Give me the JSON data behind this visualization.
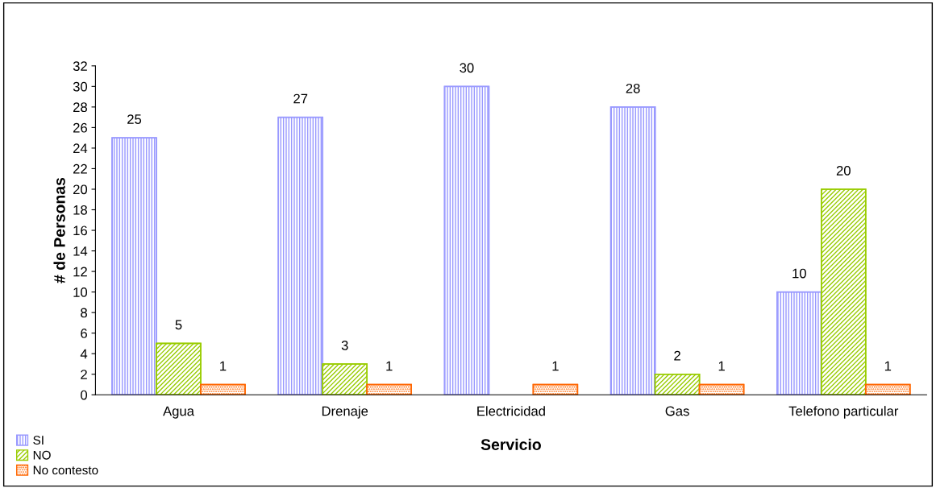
{
  "chart_data": {
    "type": "bar",
    "xlabel": "Servicio",
    "ylabel": "# de Personas",
    "categories": [
      "Agua",
      "Drenaje",
      "Electricidad",
      "Gas",
      "Telefono particular"
    ],
    "series": [
      {
        "name": "SI",
        "color": "#9999ff",
        "values": [
          25,
          27,
          30,
          28,
          10
        ]
      },
      {
        "name": "NO",
        "color": "#99cc00",
        "values": [
          5,
          3,
          null,
          2,
          20
        ]
      },
      {
        "name": "No contesto",
        "color": "#ff6600",
        "values": [
          1,
          1,
          1,
          1,
          1
        ]
      }
    ],
    "ylim": [
      0,
      32
    ],
    "yticks": [
      0,
      2,
      4,
      6,
      8,
      10,
      12,
      14,
      16,
      18,
      20,
      22,
      24,
      26,
      28,
      30,
      32
    ],
    "grid": false,
    "legend": "bottom left",
    "data_labels": true
  }
}
